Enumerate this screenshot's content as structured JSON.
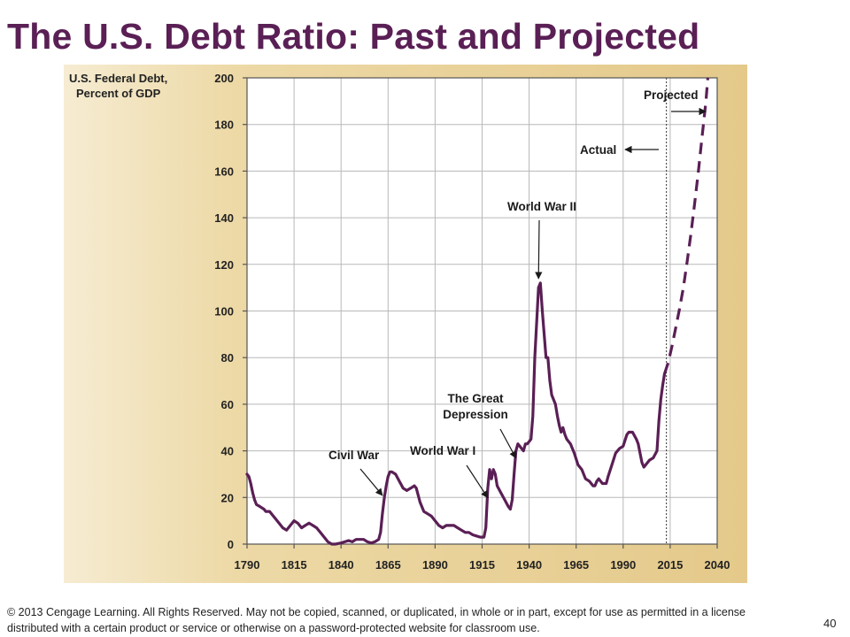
{
  "slide": {
    "title": "The U.S. Debt Ratio: Past and Projected",
    "footer": "© 2013 Cengage Learning. All Rights Reserved. May not be copied, scanned, or duplicated, in whole or in part, except for use as permitted in a license distributed with a certain product or service or otherwise on a password-protected website for classroom use.",
    "page_number": "40"
  },
  "chart_data": {
    "type": "line",
    "title": "",
    "ylabel": [
      "U.S. Federal Debt,",
      "Percent of GDP"
    ],
    "xlabel": "",
    "xlim": [
      1790,
      2040
    ],
    "ylim": [
      0,
      200
    ],
    "x_ticks": [
      1790,
      1815,
      1840,
      1865,
      1890,
      1915,
      1940,
      1965,
      1990,
      2015,
      2040
    ],
    "y_ticks": [
      0,
      20,
      40,
      60,
      80,
      100,
      120,
      140,
      160,
      180,
      200
    ],
    "grid": true,
    "colors": {
      "line": "#5a1f55",
      "panel": "#e9cf95",
      "plot_bg": "#ffffff",
      "grid": "#b8b8b8"
    },
    "series": [
      {
        "name": "Actual",
        "style": "solid",
        "points": [
          [
            1790,
            30
          ],
          [
            1791,
            29
          ],
          [
            1792,
            26
          ],
          [
            1793,
            22
          ],
          [
            1794,
            19
          ],
          [
            1795,
            17
          ],
          [
            1797,
            16
          ],
          [
            1799,
            15
          ],
          [
            1800,
            14
          ],
          [
            1802,
            14
          ],
          [
            1803,
            13
          ],
          [
            1805,
            11
          ],
          [
            1807,
            9
          ],
          [
            1809,
            7
          ],
          [
            1811,
            6
          ],
          [
            1812,
            7
          ],
          [
            1813,
            8
          ],
          [
            1815,
            10
          ],
          [
            1817,
            9
          ],
          [
            1819,
            7
          ],
          [
            1821,
            8
          ],
          [
            1823,
            9
          ],
          [
            1825,
            8
          ],
          [
            1827,
            7
          ],
          [
            1829,
            5
          ],
          [
            1831,
            3
          ],
          [
            1833,
            1
          ],
          [
            1835,
            0
          ],
          [
            1837,
            0
          ],
          [
            1840,
            0.5
          ],
          [
            1842,
            1
          ],
          [
            1844,
            1.5
          ],
          [
            1846,
            1
          ],
          [
            1848,
            2
          ],
          [
            1850,
            2
          ],
          [
            1852,
            2
          ],
          [
            1854,
            1
          ],
          [
            1856,
            0.5
          ],
          [
            1858,
            1
          ],
          [
            1860,
            2
          ],
          [
            1861,
            5
          ],
          [
            1862,
            13
          ],
          [
            1863,
            20
          ],
          [
            1864,
            25
          ],
          [
            1865,
            29
          ],
          [
            1866,
            31
          ],
          [
            1867,
            31
          ],
          [
            1869,
            30
          ],
          [
            1871,
            27
          ],
          [
            1873,
            24
          ],
          [
            1875,
            23
          ],
          [
            1877,
            24
          ],
          [
            1879,
            25
          ],
          [
            1880,
            24
          ],
          [
            1882,
            18
          ],
          [
            1884,
            14
          ],
          [
            1886,
            13
          ],
          [
            1888,
            12
          ],
          [
            1890,
            10
          ],
          [
            1892,
            8
          ],
          [
            1894,
            7
          ],
          [
            1896,
            8
          ],
          [
            1898,
            8
          ],
          [
            1900,
            8
          ],
          [
            1902,
            7
          ],
          [
            1904,
            6
          ],
          [
            1906,
            5
          ],
          [
            1908,
            5
          ],
          [
            1910,
            4
          ],
          [
            1912,
            3.5
          ],
          [
            1914,
            3
          ],
          [
            1916,
            3
          ],
          [
            1917,
            7
          ],
          [
            1918,
            24
          ],
          [
            1919,
            32
          ],
          [
            1920,
            28
          ],
          [
            1921,
            32
          ],
          [
            1922,
            30
          ],
          [
            1923,
            25
          ],
          [
            1925,
            22
          ],
          [
            1927,
            19
          ],
          [
            1929,
            16
          ],
          [
            1930,
            15
          ],
          [
            1931,
            19
          ],
          [
            1932,
            30
          ],
          [
            1933,
            40
          ],
          [
            1934,
            43
          ],
          [
            1935,
            42
          ],
          [
            1936,
            41
          ],
          [
            1937,
            40
          ],
          [
            1938,
            43
          ],
          [
            1939,
            43
          ],
          [
            1940,
            44
          ],
          [
            1941,
            45
          ],
          [
            1942,
            55
          ],
          [
            1943,
            80
          ],
          [
            1944,
            95
          ],
          [
            1945,
            110
          ],
          [
            1946,
            112
          ],
          [
            1947,
            100
          ],
          [
            1948,
            90
          ],
          [
            1949,
            80
          ],
          [
            1950,
            80
          ],
          [
            1951,
            70
          ],
          [
            1952,
            64
          ],
          [
            1953,
            62
          ],
          [
            1954,
            60
          ],
          [
            1955,
            55
          ],
          [
            1956,
            51
          ],
          [
            1957,
            48
          ],
          [
            1958,
            50
          ],
          [
            1959,
            47
          ],
          [
            1960,
            45
          ],
          [
            1962,
            43
          ],
          [
            1964,
            39
          ],
          [
            1966,
            34
          ],
          [
            1968,
            32
          ],
          [
            1970,
            28
          ],
          [
            1972,
            27
          ],
          [
            1974,
            25
          ],
          [
            1975,
            25
          ],
          [
            1976,
            27
          ],
          [
            1977,
            28
          ],
          [
            1979,
            26
          ],
          [
            1980,
            26
          ],
          [
            1981,
            26
          ],
          [
            1982,
            29
          ],
          [
            1984,
            34
          ],
          [
            1986,
            39
          ],
          [
            1988,
            41
          ],
          [
            1990,
            42
          ],
          [
            1992,
            47
          ],
          [
            1993,
            48
          ],
          [
            1995,
            48
          ],
          [
            1997,
            45
          ],
          [
            1998,
            43
          ],
          [
            2000,
            35
          ],
          [
            2001,
            33
          ],
          [
            2002,
            34
          ],
          [
            2004,
            36
          ],
          [
            2006,
            37
          ],
          [
            2008,
            40
          ],
          [
            2009,
            53
          ],
          [
            2010,
            62
          ],
          [
            2011,
            68
          ],
          [
            2012,
            73
          ]
        ]
      },
      {
        "name": "Projected",
        "style": "dashed",
        "points": [
          [
            2012,
            73
          ],
          [
            2014,
            78
          ],
          [
            2016,
            85
          ],
          [
            2018,
            93
          ],
          [
            2020,
            101
          ],
          [
            2022,
            110
          ],
          [
            2024,
            121
          ],
          [
            2026,
            133
          ],
          [
            2028,
            146
          ],
          [
            2030,
            160
          ],
          [
            2032,
            175
          ],
          [
            2034,
            190
          ],
          [
            2035,
            200
          ]
        ]
      }
    ],
    "divider_x": 2013,
    "annotations": [
      {
        "text": "Civil War",
        "x": 1862,
        "y": 19
      },
      {
        "text": "World War I",
        "x": 1918,
        "y": 18
      },
      {
        "text": [
          "The Great",
          "Depression"
        ],
        "x": 1933,
        "y": 35
      },
      {
        "text": "World War II",
        "x": 1945,
        "y": 112
      },
      {
        "text": "Actual",
        "x": 2013,
        "y": 170
      },
      {
        "text": "Projected",
        "x": 2013,
        "y": 186
      }
    ]
  }
}
